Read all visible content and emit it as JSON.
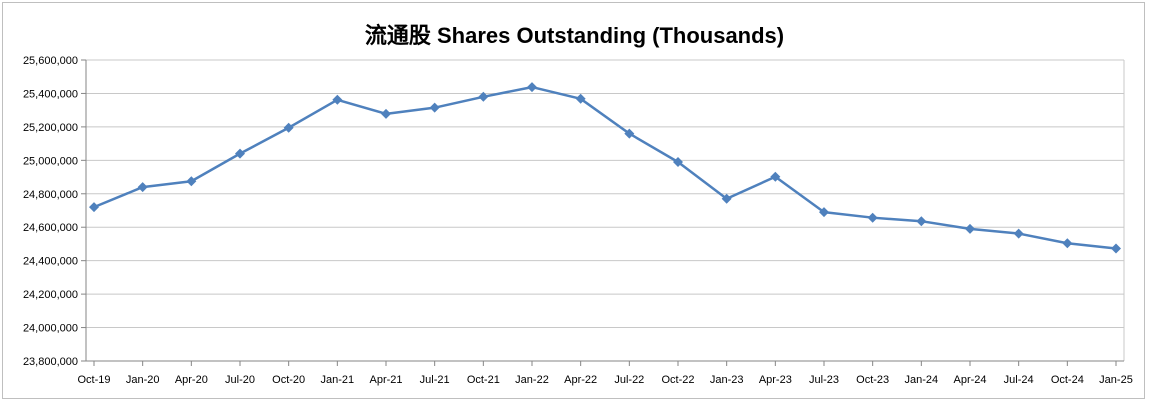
{
  "chart_data": {
    "type": "line",
    "title": "流通股 Shares Outstanding (Thousands)",
    "xlabel": "",
    "ylabel": "",
    "ylim": [
      23800000,
      25600000
    ],
    "y_ticks": [
      "25,600,000",
      "25,400,000",
      "25,200,000",
      "25,000,000",
      "24,800,000",
      "24,600,000",
      "24,400,000",
      "24,200,000",
      "24,000,000",
      "23,800,000"
    ],
    "y_tick_values": [
      25600000,
      25400000,
      25200000,
      25000000,
      24800000,
      24600000,
      24400000,
      24200000,
      24000000,
      23800000
    ],
    "categories": [
      "Oct-19",
      "Jan-20",
      "Apr-20",
      "Jul-20",
      "Oct-20",
      "Jan-21",
      "Apr-21",
      "Jul-21",
      "Oct-21",
      "Jan-22",
      "Apr-22",
      "Jul-22",
      "Oct-22",
      "Jan-23",
      "Apr-23",
      "Jul-23",
      "Oct-23",
      "Jan-24",
      "Apr-24",
      "Jul-24",
      "Oct-24",
      "Jan-25"
    ],
    "series": [
      {
        "values": [
          24720000,
          24840000,
          24875000,
          25040000,
          25195000,
          25362000,
          25278000,
          25315000,
          25380000,
          25438000,
          25368000,
          25160000,
          24990000,
          24770000,
          24902000,
          24690000,
          24657000,
          24636000,
          24590000,
          24562000,
          24504000,
          24473000
        ],
        "color": "#4f81bd"
      }
    ],
    "grid": true,
    "legend": "none"
  }
}
